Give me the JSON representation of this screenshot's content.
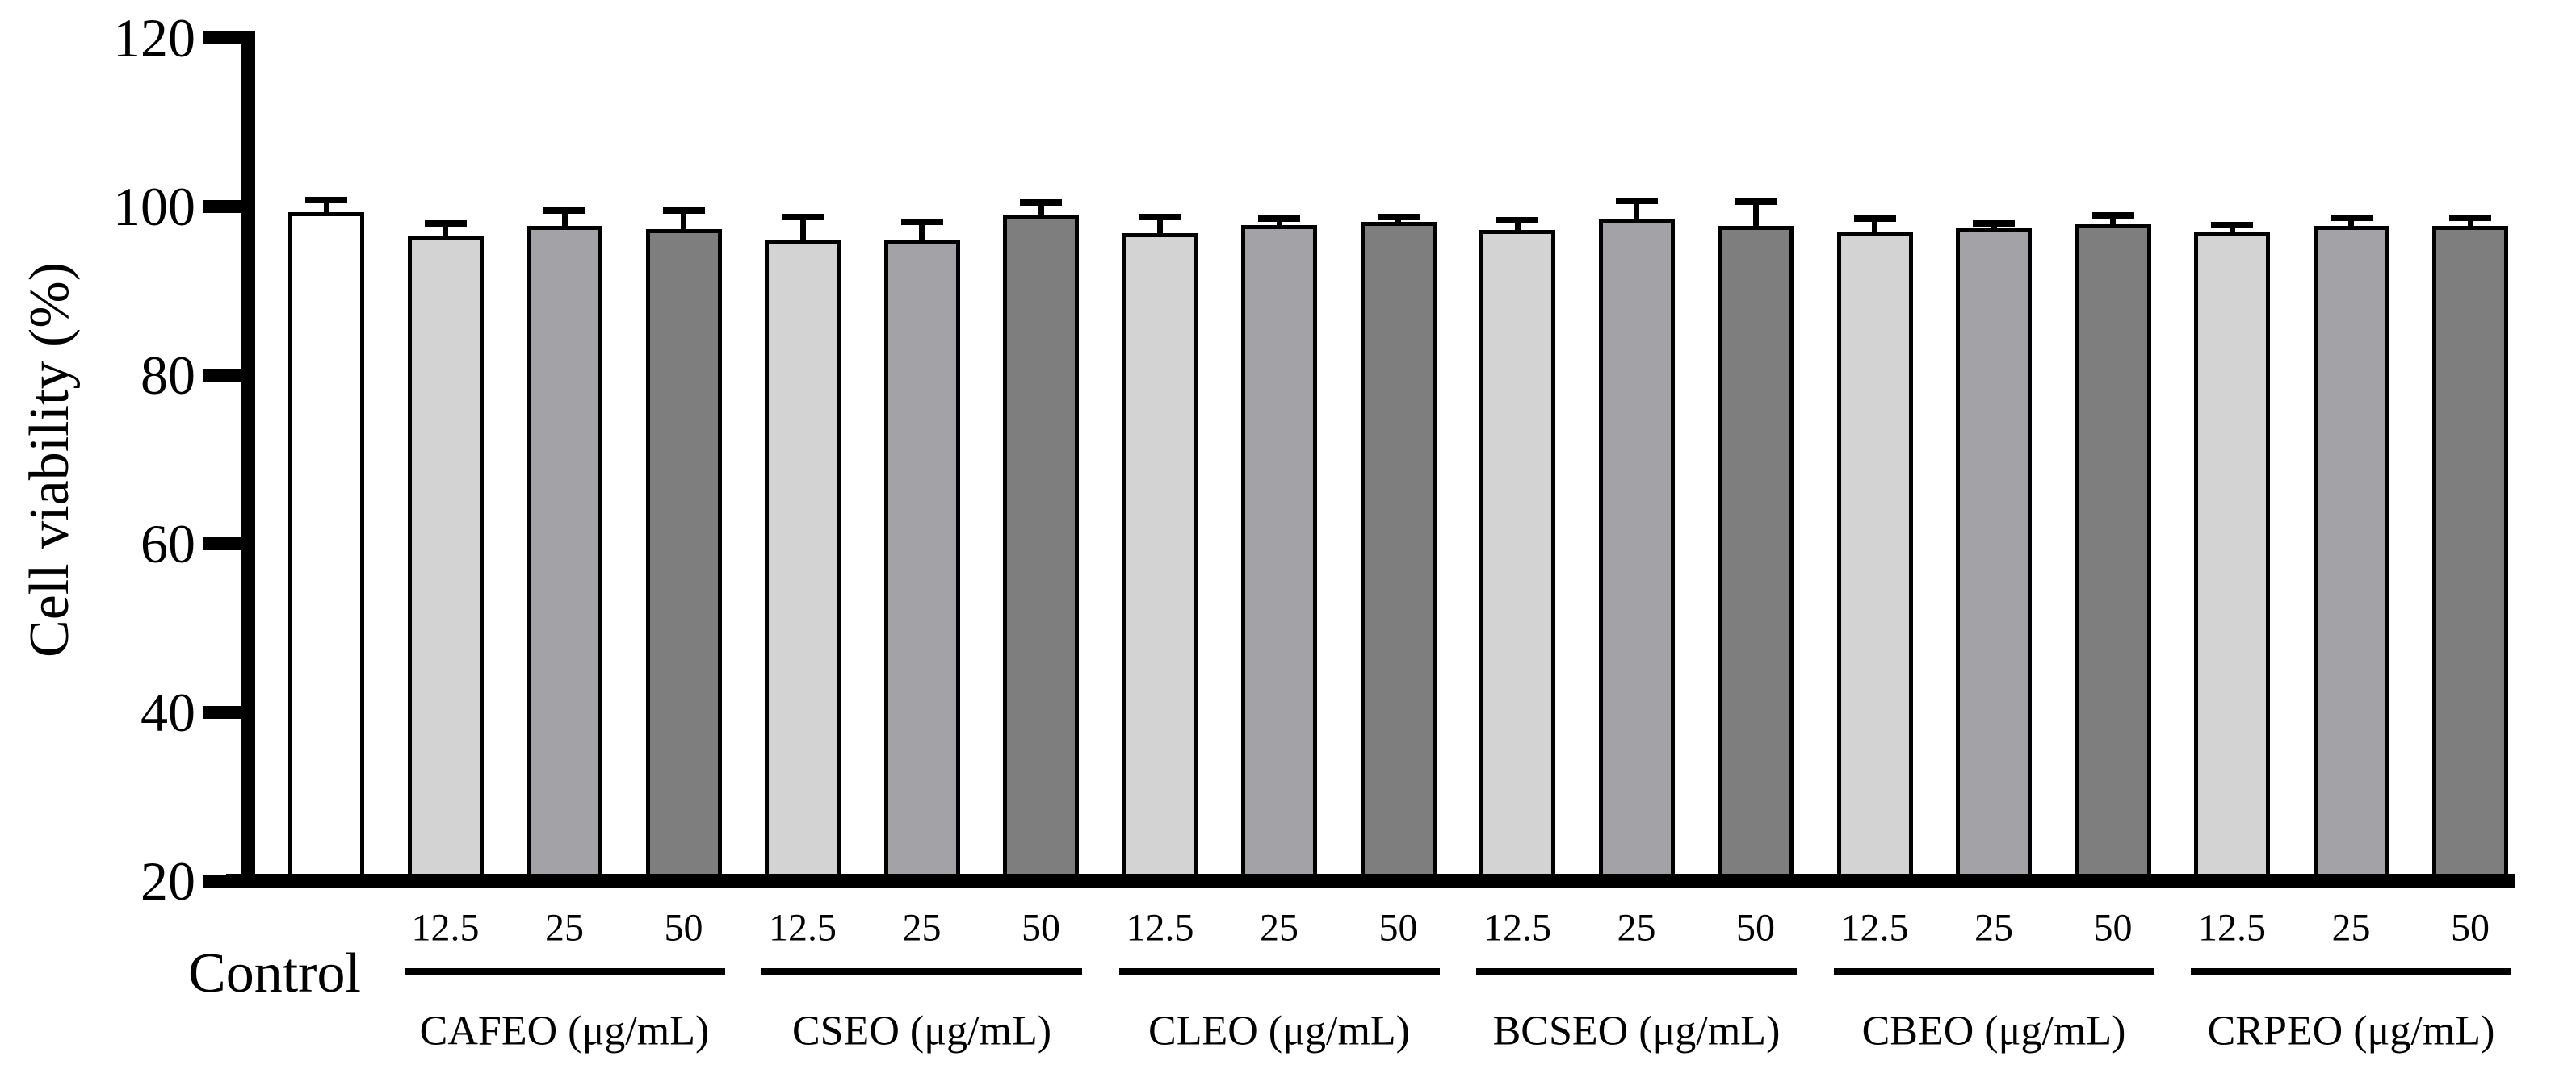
{
  "chart_data": {
    "type": "bar",
    "title": "",
    "ylabel": "Cell viability (%)",
    "xlabel": "",
    "ylim": [
      20,
      120
    ],
    "yticks": [
      120,
      100,
      80,
      60,
      40,
      20
    ],
    "grid": false,
    "legend": "none",
    "bar_border_color": "#000000",
    "control": {
      "label": "Control",
      "value": 99.3,
      "error": 1.5,
      "color": "#ffffff"
    },
    "dose_labels": [
      "12.5",
      "25",
      "50"
    ],
    "dose_colors": [
      "#d3d3d3",
      "#a3a3a7",
      "#7e7e7e"
    ],
    "groups": [
      {
        "label": "CAFEO (μg/mL)",
        "values": [
          96.6,
          97.7,
          97.3
        ],
        "errors": [
          1.4,
          1.8,
          2.2
        ]
      },
      {
        "label": "CSEO (μg/mL)",
        "values": [
          96.1,
          96.0,
          98.9
        ],
        "errors": [
          2.7,
          2.2,
          1.6
        ]
      },
      {
        "label": "CLEO (μg/mL)",
        "values": [
          96.8,
          97.8,
          98.2
        ],
        "errors": [
          2.0,
          0.8,
          0.6
        ]
      },
      {
        "label": "BCSEO (μg/mL)",
        "values": [
          97.2,
          98.5,
          97.7
        ],
        "errors": [
          1.2,
          2.2,
          2.9
        ]
      },
      {
        "label": "CBEO (μg/mL)",
        "values": [
          97.0,
          97.4,
          97.9
        ],
        "errors": [
          1.6,
          0.6,
          1.0
        ]
      },
      {
        "label": "CRPEO (μg/mL)",
        "values": [
          97.0,
          97.7,
          97.7
        ],
        "errors": [
          0.8,
          1.0,
          1.0
        ]
      }
    ]
  }
}
